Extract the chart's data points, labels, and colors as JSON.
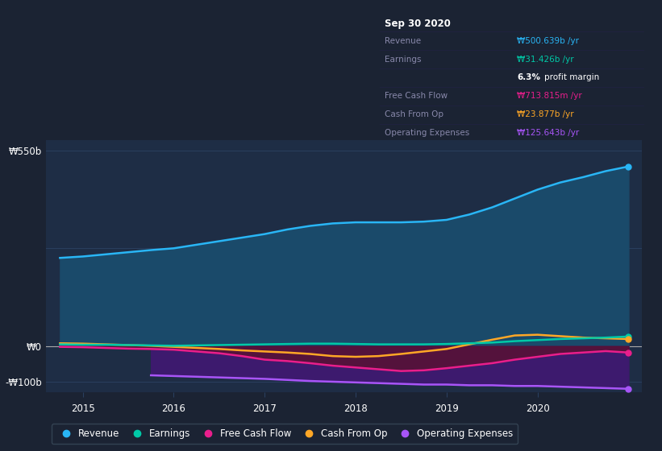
{
  "bg_color": "#1b2333",
  "plot_bg_color": "#1e2d45",
  "grid_color": "#2a3f5f",
  "ylim": [
    -130,
    580
  ],
  "xlim": [
    2014.6,
    2021.15
  ],
  "x_ticks": [
    2015,
    2016,
    2017,
    2018,
    2019,
    2020
  ],
  "ytick_positions": [
    550,
    0,
    -100
  ],
  "ytick_labels": [
    "₩550b",
    "₩0",
    "-₩100b"
  ],
  "series": {
    "Revenue": {
      "color": "#29b6f6",
      "fill_color": "#1a4a6a",
      "x": [
        2014.75,
        2015.0,
        2015.25,
        2015.5,
        2015.75,
        2016.0,
        2016.25,
        2016.5,
        2016.75,
        2017.0,
        2017.25,
        2017.5,
        2017.75,
        2018.0,
        2018.25,
        2018.5,
        2018.75,
        2019.0,
        2019.25,
        2019.5,
        2019.75,
        2020.0,
        2020.25,
        2020.5,
        2020.75,
        2021.0
      ],
      "y": [
        248,
        252,
        258,
        264,
        270,
        275,
        285,
        295,
        305,
        315,
        328,
        338,
        345,
        348,
        348,
        348,
        350,
        355,
        370,
        390,
        415,
        440,
        460,
        475,
        492,
        505
      ]
    },
    "Earnings": {
      "color": "#00c9a7",
      "x": [
        2014.75,
        2015.0,
        2015.25,
        2015.5,
        2015.75,
        2016.0,
        2016.25,
        2016.5,
        2016.75,
        2017.0,
        2017.25,
        2017.5,
        2017.75,
        2018.0,
        2018.25,
        2018.5,
        2018.75,
        2019.0,
        2019.25,
        2019.5,
        2019.75,
        2020.0,
        2020.25,
        2020.5,
        2020.75,
        2021.0
      ],
      "y": [
        5,
        4,
        4,
        3,
        2,
        1,
        2,
        3,
        4,
        5,
        6,
        7,
        7,
        6,
        5,
        5,
        5,
        6,
        8,
        10,
        14,
        17,
        20,
        22,
        24,
        27
      ]
    },
    "Free Cash Flow": {
      "color": "#e91e8c",
      "fill_color": "#5a1030",
      "x": [
        2014.75,
        2015.0,
        2015.25,
        2015.5,
        2015.75,
        2016.0,
        2016.25,
        2016.5,
        2016.75,
        2017.0,
        2017.25,
        2017.5,
        2017.75,
        2018.0,
        2018.25,
        2018.5,
        2018.75,
        2019.0,
        2019.25,
        2019.5,
        2019.75,
        2020.0,
        2020.25,
        2020.5,
        2020.75,
        2021.0
      ],
      "y": [
        -2,
        -3,
        -5,
        -7,
        -8,
        -10,
        -15,
        -20,
        -28,
        -38,
        -42,
        -48,
        -55,
        -60,
        -65,
        -70,
        -68,
        -62,
        -55,
        -48,
        -38,
        -30,
        -22,
        -18,
        -14,
        -18
      ]
    },
    "Cash From Op": {
      "color": "#ffa726",
      "x": [
        2014.75,
        2015.0,
        2015.25,
        2015.5,
        2015.75,
        2016.0,
        2016.25,
        2016.5,
        2016.75,
        2017.0,
        2017.25,
        2017.5,
        2017.75,
        2018.0,
        2018.25,
        2018.5,
        2018.75,
        2019.0,
        2019.25,
        2019.5,
        2019.75,
        2020.0,
        2020.25,
        2020.5,
        2020.75,
        2021.0
      ],
      "y": [
        8,
        7,
        5,
        3,
        1,
        -2,
        -5,
        -8,
        -12,
        -15,
        -18,
        -22,
        -28,
        -30,
        -28,
        -22,
        -15,
        -8,
        5,
        18,
        30,
        32,
        28,
        24,
        22,
        20
      ]
    },
    "Operating Expenses": {
      "color": "#a855f7",
      "fill_color": "#3d1a6e",
      "x_start": 2015.75,
      "x": [
        2015.75,
        2016.0,
        2016.25,
        2016.5,
        2016.75,
        2017.0,
        2017.25,
        2017.5,
        2017.75,
        2018.0,
        2018.25,
        2018.5,
        2018.75,
        2019.0,
        2019.25,
        2019.5,
        2019.75,
        2020.0,
        2020.25,
        2020.5,
        2020.75,
        2021.0
      ],
      "y": [
        -82,
        -84,
        -86,
        -88,
        -90,
        -92,
        -95,
        -98,
        -100,
        -102,
        -104,
        -106,
        -108,
        -108,
        -110,
        -110,
        -112,
        -112,
        -114,
        -116,
        -118,
        -120
      ],
      "y_top": [
        -78,
        -80,
        -82,
        -84,
        -86,
        -88,
        -90,
        -92,
        -94,
        -96,
        -98,
        -100,
        -102,
        -102,
        -104,
        -105,
        -106,
        -107,
        -108,
        -110,
        -112,
        -114
      ]
    }
  },
  "tooltip": {
    "title": "Sep 30 2020",
    "rows": [
      {
        "label": "Revenue",
        "value": "₩500.639b /yr",
        "color": "#29b6f6"
      },
      {
        "label": "Earnings",
        "value": "₩31.426b /yr",
        "color": "#00c9a7",
        "extra": "6.3% profit margin"
      },
      {
        "label": "Free Cash Flow",
        "value": "₩713.815m /yr",
        "color": "#e91e8c"
      },
      {
        "label": "Cash From Op",
        "value": "₩23.877b /yr",
        "color": "#ffa726"
      },
      {
        "label": "Operating Expenses",
        "value": "₩125.643b /yr",
        "color": "#a855f7"
      }
    ]
  },
  "legend_items": [
    {
      "label": "Revenue",
      "color": "#29b6f6"
    },
    {
      "label": "Earnings",
      "color": "#00c9a7"
    },
    {
      "label": "Free Cash Flow",
      "color": "#e91e8c"
    },
    {
      "label": "Cash From Op",
      "color": "#ffa726"
    },
    {
      "label": "Operating Expenses",
      "color": "#a855f7"
    }
  ]
}
